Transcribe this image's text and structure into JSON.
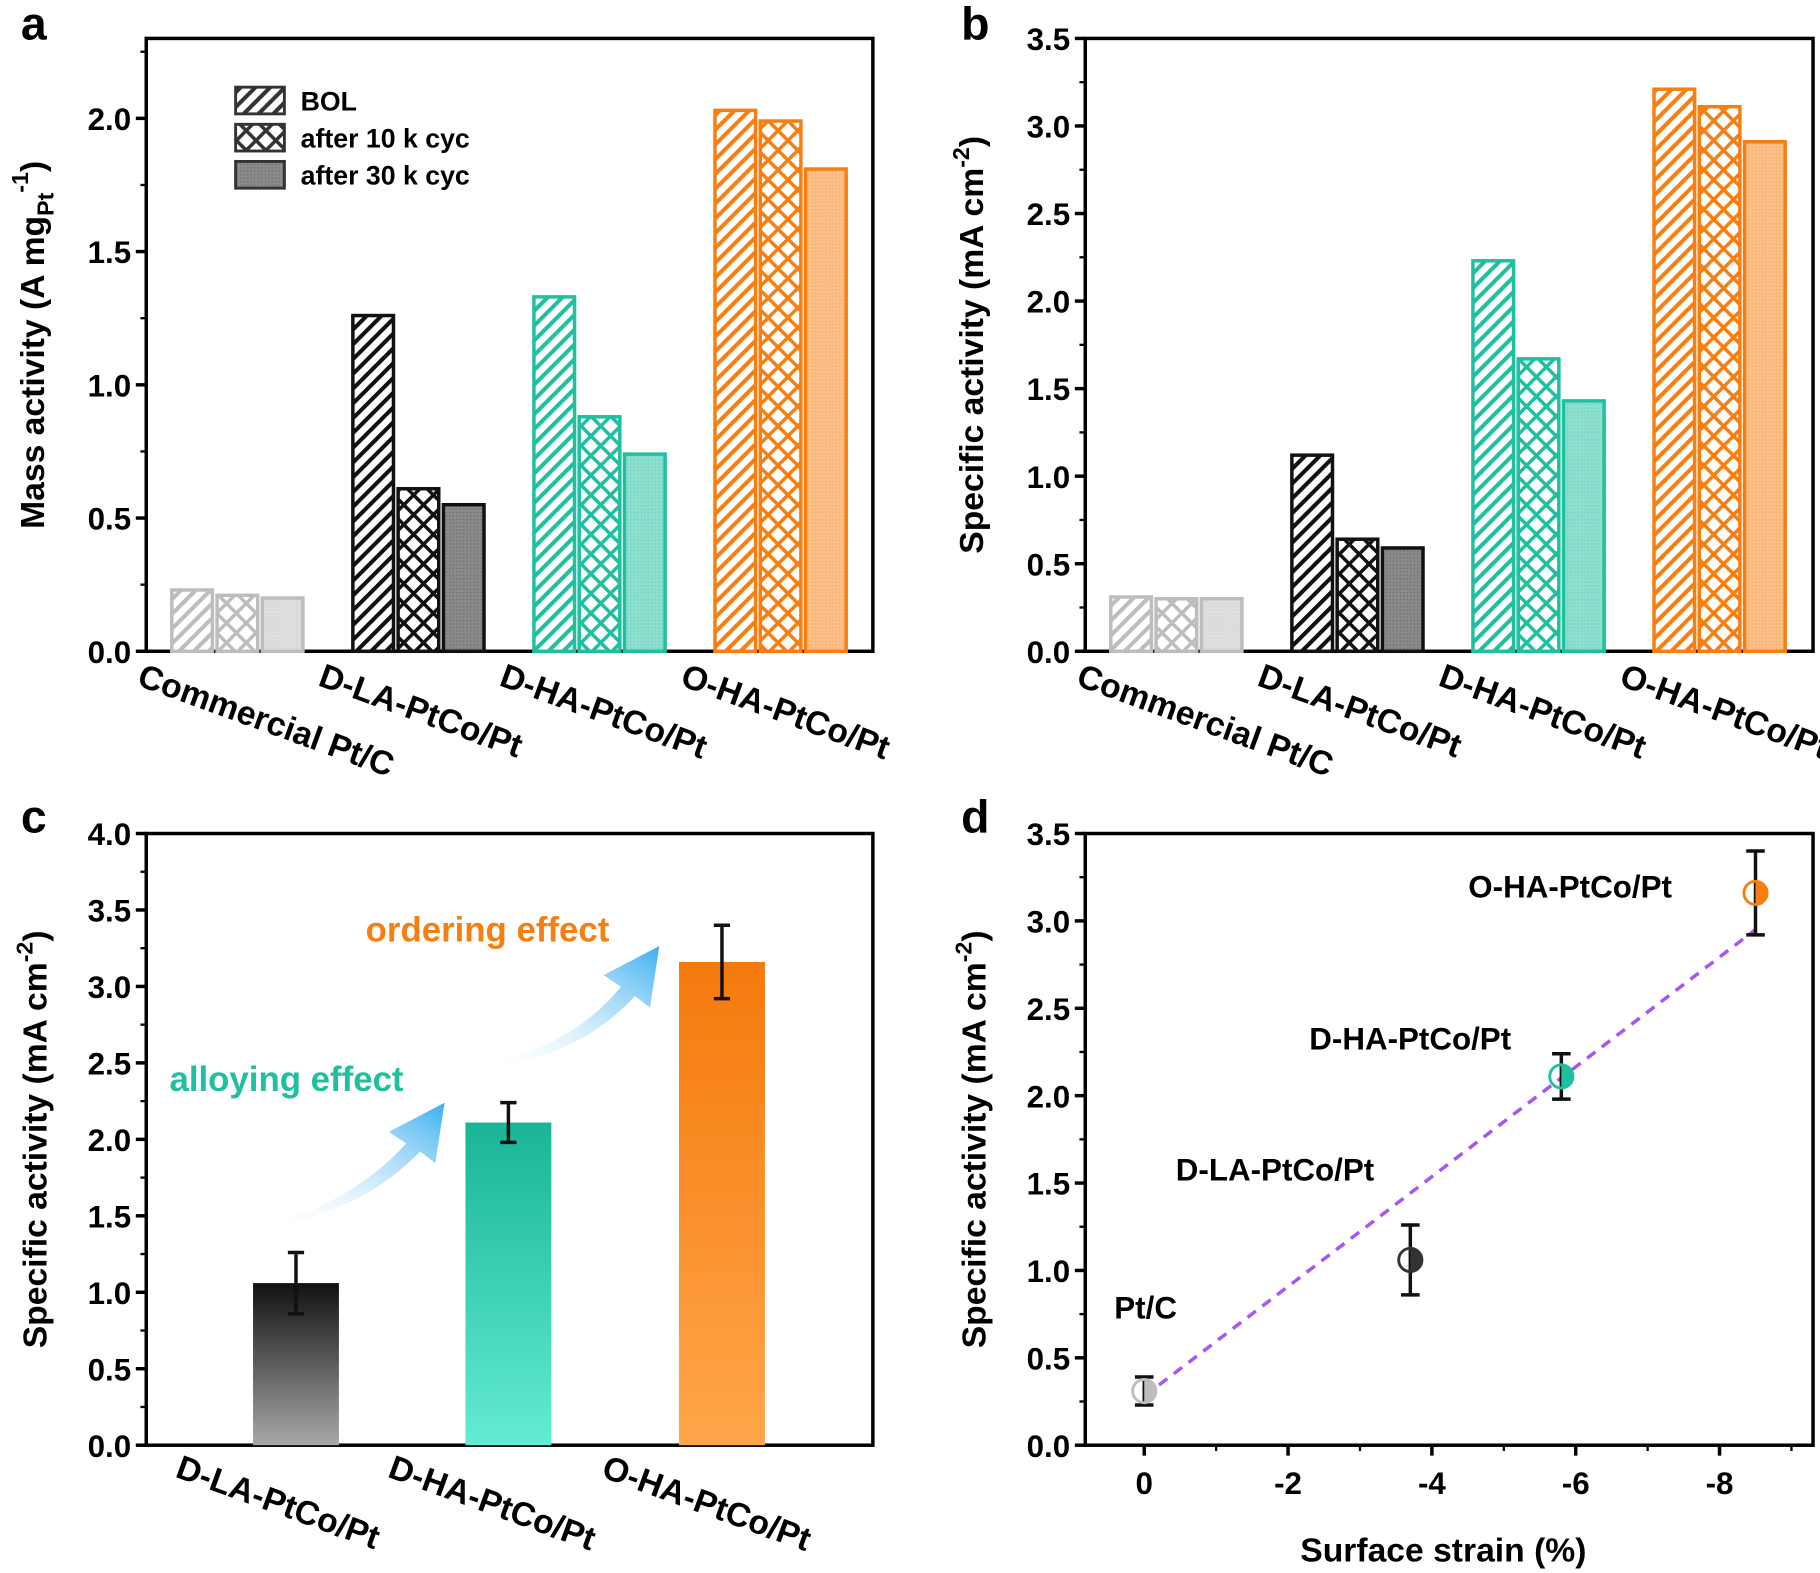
{
  "colors": {
    "commercial": "#bdbdbd",
    "dla": "#111111",
    "dha": "#1fbf9f",
    "oha": "#f77f12",
    "fit_line": "#a855f7",
    "arrow": "#3aaef0"
  },
  "legend": [
    {
      "label": "BOL",
      "pattern": "hatch"
    },
    {
      "label": "after 10 k cyc",
      "pattern": "crosshatch"
    },
    {
      "label": "after 30 k cyc",
      "pattern": "dots"
    }
  ],
  "chart_data": [
    {
      "panel": "a",
      "type": "bar",
      "categories": [
        "Commercial Pt/C",
        "D-LA-PtCo/Pt",
        "D-HA-PtCo/Pt",
        "O-HA-PtCo/Pt"
      ],
      "series": [
        {
          "name": "BOL",
          "values": [
            0.23,
            1.26,
            1.33,
            2.03
          ]
        },
        {
          "name": "after 10 k cyc",
          "values": [
            0.21,
            0.61,
            0.88,
            1.99
          ]
        },
        {
          "name": "after 30 k cyc",
          "values": [
            0.2,
            0.55,
            0.74,
            1.81
          ]
        }
      ],
      "ylabel": {
        "main": "Mass activity (A mg",
        "sub": "Pt",
        "sup": "-1",
        "end": ")"
      },
      "ylim": [
        0,
        2.3
      ],
      "yticks": [
        "0.0",
        "0.5",
        "1.0",
        "1.5",
        "2.0"
      ],
      "legend_position": "top-left"
    },
    {
      "panel": "b",
      "type": "bar",
      "categories": [
        "Commercial Pt/C",
        "D-LA-PtCo/Pt",
        "D-HA-PtCo/Pt",
        "O-HA-PtCo/Pt"
      ],
      "series": [
        {
          "name": "BOL",
          "values": [
            0.31,
            1.12,
            2.23,
            3.21
          ]
        },
        {
          "name": "after 10 k cyc",
          "values": [
            0.3,
            0.64,
            1.67,
            3.11
          ]
        },
        {
          "name": "after 30 k cyc",
          "values": [
            0.3,
            0.59,
            1.43,
            2.91
          ]
        }
      ],
      "ylabel": {
        "main": "Specific activity (mA cm",
        "sup": "-2",
        "end": ")"
      },
      "ylim": [
        0,
        3.5
      ],
      "yticks": [
        "0.0",
        "0.5",
        "1.0",
        "1.5",
        "2.0",
        "2.5",
        "3.0",
        "3.5"
      ]
    },
    {
      "panel": "c",
      "type": "bar",
      "categories": [
        "D-LA-PtCo/Pt",
        "D-HA-PtCo/Pt",
        "O-HA-PtCo/Pt"
      ],
      "values": [
        1.06,
        2.11,
        3.16
      ],
      "errors": [
        0.2,
        0.13,
        0.24
      ],
      "ylabel": {
        "main": "Specific activity (mA cm",
        "sup": "-2",
        "end": ")"
      },
      "ylim": [
        0,
        4.0
      ],
      "yticks": [
        "0.0",
        "0.5",
        "1.0",
        "1.5",
        "2.0",
        "2.5",
        "3.0",
        "3.5",
        "4.0"
      ],
      "annotations": [
        "alloying effect",
        "ordering effect"
      ]
    },
    {
      "panel": "d",
      "type": "scatter",
      "points": [
        {
          "label": "Pt/C",
          "x": 0,
          "y": 0.31,
          "err": 0.08
        },
        {
          "label": "D-LA-PtCo/Pt",
          "x": -3.7,
          "y": 1.06,
          "err": 0.2
        },
        {
          "label": "D-HA-PtCo/Pt",
          "x": -5.8,
          "y": 2.11,
          "err": 0.13
        },
        {
          "label": "O-HA-PtCo/Pt",
          "x": -8.5,
          "y": 3.16,
          "err": 0.24
        }
      ],
      "fit_line": [
        [
          0,
          0.28
        ],
        [
          -8.5,
          2.95
        ]
      ],
      "xlabel": "Surface strain (%)",
      "ylabel": {
        "main": "Specific activity (mA cm",
        "sup": "-2",
        "end": ")"
      },
      "xlim": [
        0.82,
        -9.3
      ],
      "ylim": [
        0,
        3.5
      ],
      "xticks": [
        "0",
        "-2",
        "-4",
        "-6",
        "-8"
      ],
      "yticks": [
        "0.0",
        "0.5",
        "1.0",
        "1.5",
        "2.0",
        "2.5",
        "3.0",
        "3.5"
      ]
    }
  ]
}
